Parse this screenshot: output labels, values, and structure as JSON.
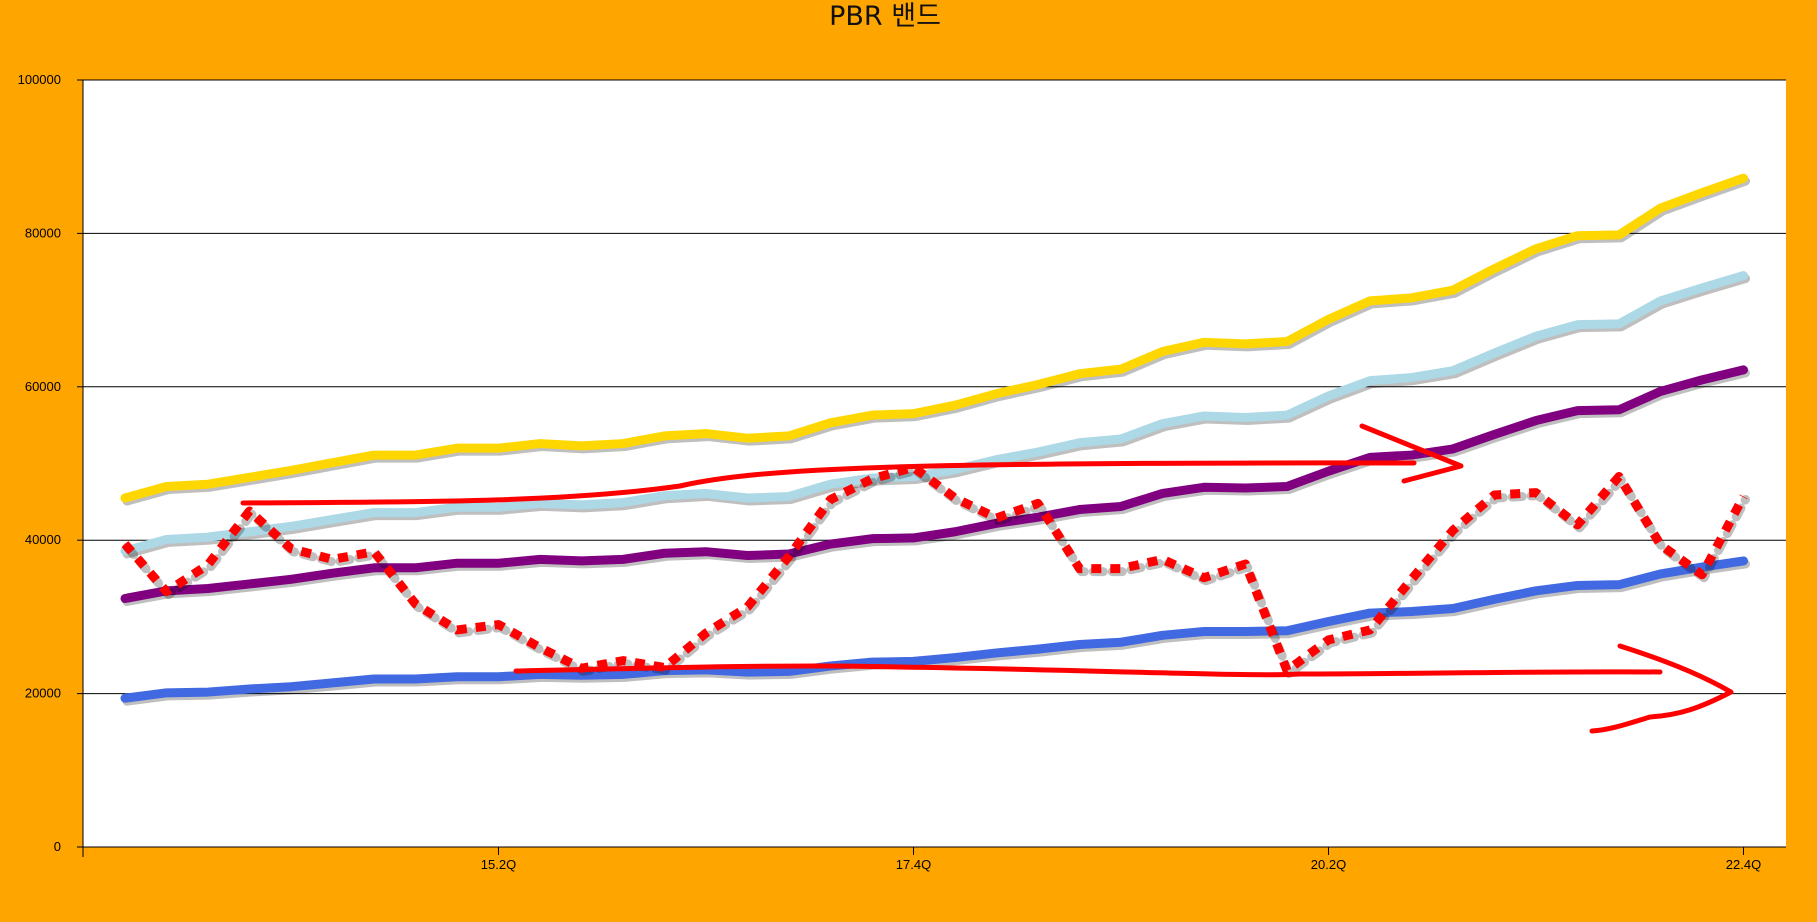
{
  "chart_data": {
    "type": "line",
    "title": "PBR 밴드",
    "xlabel": "",
    "ylabel": "",
    "ylim": [
      0,
      100000
    ],
    "y_ticks": [
      0,
      20000,
      40000,
      60000,
      80000,
      100000
    ],
    "y_tick_labels": [
      "0",
      "20000",
      "40000",
      "60000",
      "80000",
      "100000"
    ],
    "x_tick_labels": [
      {
        "index": 9,
        "label": "15.2Q"
      },
      {
        "index": 19,
        "label": "17.4Q"
      },
      {
        "index": 29,
        "label": "20.2Q"
      },
      {
        "index": 39,
        "label": "22.4Q"
      }
    ],
    "grid": true,
    "legend": "none",
    "plot_background": "#FFFFFF",
    "page_background": "#FFA500",
    "series": [
      {
        "color": "#FFD700",
        "style": "solid",
        "values": [
          45500,
          47000,
          47300,
          48200,
          49100,
          50100,
          51100,
          51100,
          52000,
          52000,
          52600,
          52300,
          52600,
          53600,
          53900,
          53300,
          53600,
          55300,
          56300,
          56500,
          57600,
          59100,
          60300,
          61700,
          62300,
          64600,
          65800,
          65600,
          65900,
          68800,
          71200,
          71600,
          72600,
          75400,
          78000,
          79700,
          79800,
          83300,
          85300,
          87200
        ]
      },
      {
        "color": "#ADD8E6",
        "style": "solid",
        "values": [
          38600,
          40100,
          40400,
          41100,
          41800,
          42700,
          43600,
          43600,
          44300,
          44300,
          44800,
          44600,
          44900,
          45800,
          46100,
          45500,
          45700,
          47300,
          48100,
          48300,
          49200,
          50500,
          51500,
          52700,
          53200,
          55200,
          56200,
          56000,
          56300,
          58800,
          60800,
          61200,
          62100,
          64400,
          66600,
          68100,
          68200,
          71200,
          72900,
          74500
        ]
      },
      {
        "color": "#800080",
        "style": "solid",
        "values": [
          32400,
          33400,
          33700,
          34300,
          34900,
          35700,
          36400,
          36400,
          37000,
          37000,
          37500,
          37300,
          37500,
          38300,
          38500,
          38000,
          38200,
          39500,
          40200,
          40300,
          41100,
          42200,
          43000,
          44000,
          44400,
          46100,
          46900,
          46800,
          47000,
          49000,
          50800,
          51100,
          51900,
          53800,
          55600,
          56900,
          57000,
          59400,
          60900,
          62200
        ]
      },
      {
        "color": "#4169E1",
        "style": "solid",
        "values": [
          19400,
          20100,
          20200,
          20600,
          20900,
          21400,
          21900,
          21900,
          22200,
          22200,
          22500,
          22400,
          22500,
          23000,
          23100,
          22800,
          22900,
          23600,
          24100,
          24200,
          24700,
          25300,
          25800,
          26400,
          26700,
          27600,
          28100,
          28100,
          28200,
          29400,
          30500,
          30700,
          31100,
          32300,
          33400,
          34100,
          34200,
          35600,
          36500,
          37300
        ]
      },
      {
        "color": "#FF0000",
        "style": "dotted",
        "values": [
          39500,
          33300,
          36800,
          43800,
          38900,
          37500,
          38500,
          31700,
          28300,
          29000,
          26000,
          23300,
          24300,
          23400,
          27900,
          31300,
          37900,
          45300,
          48000,
          49500,
          45500,
          42900,
          44800,
          36300,
          36300,
          37500,
          35100,
          36900,
          23000,
          27000,
          28300,
          34900,
          41300,
          45900,
          46200,
          42000,
          48300,
          39400,
          35500,
          45700
        ]
      }
    ],
    "annotations": [
      {
        "type": "hand-drawn-arrow",
        "color": "#FF0000",
        "approx_value": 50000
      },
      {
        "type": "hand-drawn-arrow",
        "color": "#FF0000",
        "approx_value": 22600
      }
    ]
  }
}
